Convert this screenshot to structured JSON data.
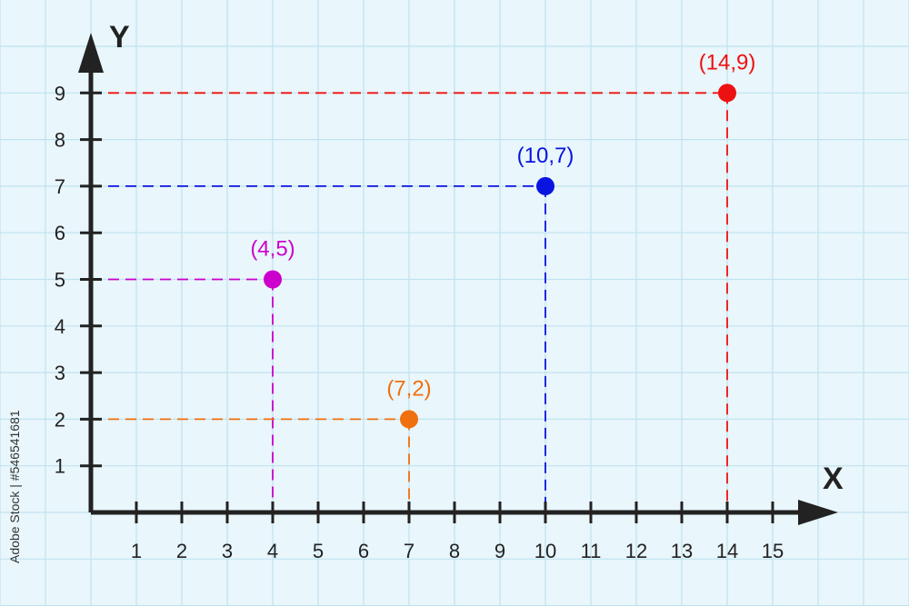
{
  "chart_data": {
    "type": "scatter",
    "title": "",
    "xlabel": "X",
    "ylabel": "Y",
    "xlim": [
      0,
      15
    ],
    "ylim": [
      0,
      9
    ],
    "x_ticks": [
      1,
      2,
      3,
      4,
      5,
      6,
      7,
      8,
      9,
      10,
      11,
      12,
      13,
      14,
      15
    ],
    "y_ticks": [
      1,
      2,
      3,
      4,
      5,
      6,
      7,
      8,
      9
    ],
    "grid": true,
    "points": [
      {
        "x": 4,
        "y": 5,
        "label": "(4,5)",
        "color": "#cc00cc"
      },
      {
        "x": 7,
        "y": 2,
        "label": "(7,2)",
        "color": "#f07010"
      },
      {
        "x": 10,
        "y": 7,
        "label": "(10,7)",
        "color": "#0a14e0"
      },
      {
        "x": 14,
        "y": 9,
        "label": "(14,9)",
        "color": "#ee1111"
      }
    ]
  },
  "watermark": "Adobe Stock | #546541681",
  "colors": {
    "background": "#e9f6fb",
    "grid": "#bfe3f0",
    "axis": "#222222"
  }
}
